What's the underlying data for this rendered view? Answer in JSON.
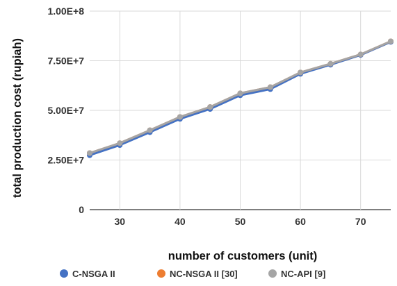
{
  "chart_data": {
    "type": "line",
    "title": "",
    "xlabel": "number of customers (unit)",
    "ylabel": "total production cost (rupiah)",
    "xlim": [
      25,
      75
    ],
    "ylim": [
      0,
      100000000
    ],
    "x_ticks": [
      30,
      40,
      50,
      60,
      70
    ],
    "x_tick_labels": [
      "30",
      "40",
      "50",
      "60",
      "70"
    ],
    "y_ticks": [
      0,
      25000000,
      50000000,
      75000000,
      100000000
    ],
    "y_tick_labels": [
      "0",
      "2.50E+7",
      "5.00E+7",
      "7.50E+7",
      "1.00E+8"
    ],
    "grid": true,
    "legend_position": "bottom",
    "x": [
      25,
      30,
      35,
      40,
      45,
      50,
      55,
      60,
      65,
      70,
      75
    ],
    "series": [
      {
        "name": "C-NSGA II",
        "color": "#4472c4",
        "values": [
          27400000,
          32500000,
          39000000,
          45700000,
          50700000,
          57600000,
          60700000,
          68400000,
          73000000,
          77900000,
          84500000
        ]
      },
      {
        "name": "NC-NSGA II [30]",
        "color": "#ed7d31",
        "values": [
          28500000,
          33500000,
          40000000,
          46700000,
          51700000,
          58600000,
          61700000,
          69100000,
          73500000,
          78200000,
          84800000
        ]
      },
      {
        "name": "NC-API [9]",
        "color": "#a5a5a5",
        "values": [
          28500000,
          33500000,
          40000000,
          46700000,
          51700000,
          58600000,
          61700000,
          69100000,
          73500000,
          78200000,
          84800000
        ]
      }
    ]
  }
}
